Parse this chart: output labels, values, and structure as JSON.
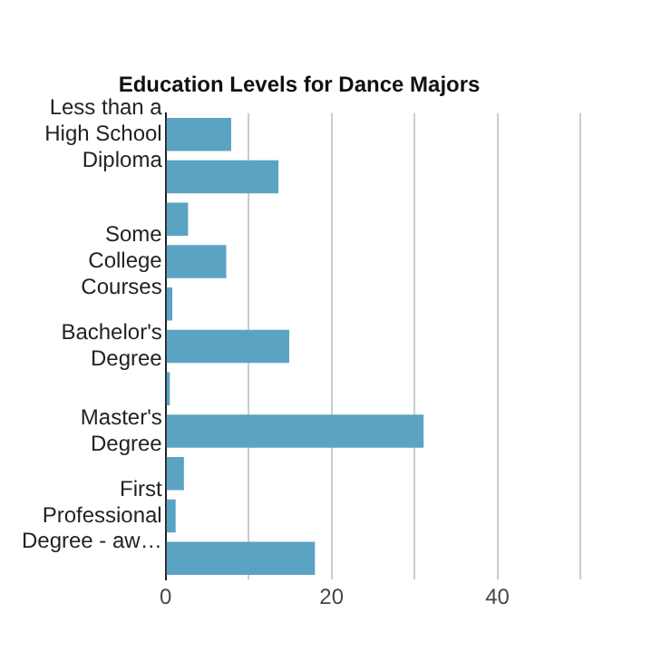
{
  "chart_data": {
    "type": "bar",
    "orientation": "horizontal",
    "title": "Education Levels for Dance Majors",
    "categories": [
      "Less than a High School Diploma",
      null,
      null,
      "Some College Courses",
      null,
      "Bachelor's Degree",
      null,
      "Master's Degree",
      null,
      "First Professional Degree - aw…",
      null
    ],
    "values": [
      7.9,
      13.6,
      2.7,
      7.3,
      0.8,
      14.9,
      0.5,
      31.1,
      2.2,
      1.2,
      18.0
    ],
    "color": "#5ba3c2",
    "xlim": [
      0,
      50
    ],
    "xticks": [
      0,
      {
        "value": 10,
        "label": null
      },
      20,
      {
        "value": 30,
        "label": null
      },
      40,
      {
        "value": 50,
        "label": null
      }
    ],
    "grid": "x",
    "legend": false
  }
}
